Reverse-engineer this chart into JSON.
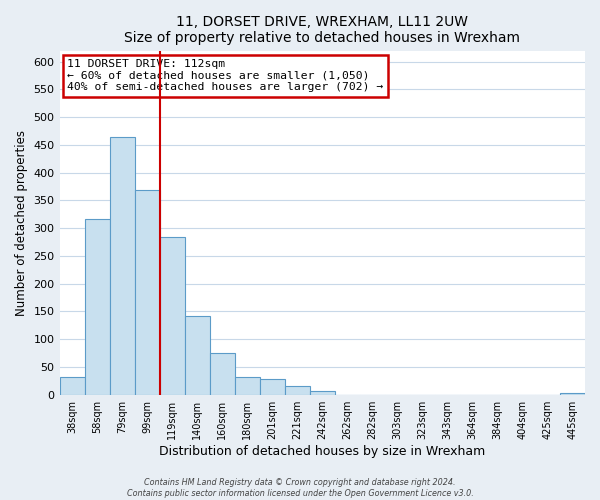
{
  "title": "11, DORSET DRIVE, WREXHAM, LL11 2UW",
  "subtitle": "Size of property relative to detached houses in Wrexham",
  "xlabel": "Distribution of detached houses by size in Wrexham",
  "ylabel": "Number of detached properties",
  "bar_labels": [
    "38sqm",
    "58sqm",
    "79sqm",
    "99sqm",
    "119sqm",
    "140sqm",
    "160sqm",
    "180sqm",
    "201sqm",
    "221sqm",
    "242sqm",
    "262sqm",
    "282sqm",
    "303sqm",
    "323sqm",
    "343sqm",
    "364sqm",
    "384sqm",
    "404sqm",
    "425sqm",
    "445sqm"
  ],
  "bar_values": [
    32,
    316,
    465,
    368,
    284,
    142,
    75,
    32,
    29,
    15,
    7,
    0,
    0,
    0,
    0,
    0,
    0,
    0,
    0,
    0,
    3
  ],
  "bar_color": "#c8e0ef",
  "bar_edge_color": "#5b9bc8",
  "vline_x_pos": 3.5,
  "vline_color": "#cc0000",
  "annotation_title": "11 DORSET DRIVE: 112sqm",
  "annotation_line1": "← 60% of detached houses are smaller (1,050)",
  "annotation_line2": "40% of semi-detached houses are larger (702) →",
  "annotation_box_edge": "#cc0000",
  "ylim": [
    0,
    620
  ],
  "yticks": [
    0,
    50,
    100,
    150,
    200,
    250,
    300,
    350,
    400,
    450,
    500,
    550,
    600
  ],
  "footer1": "Contains HM Land Registry data © Crown copyright and database right 2024.",
  "footer2": "Contains public sector information licensed under the Open Government Licence v3.0.",
  "bg_color": "#e8eef4",
  "plot_bg_color": "#ffffff",
  "grid_color": "#c8d8e8"
}
